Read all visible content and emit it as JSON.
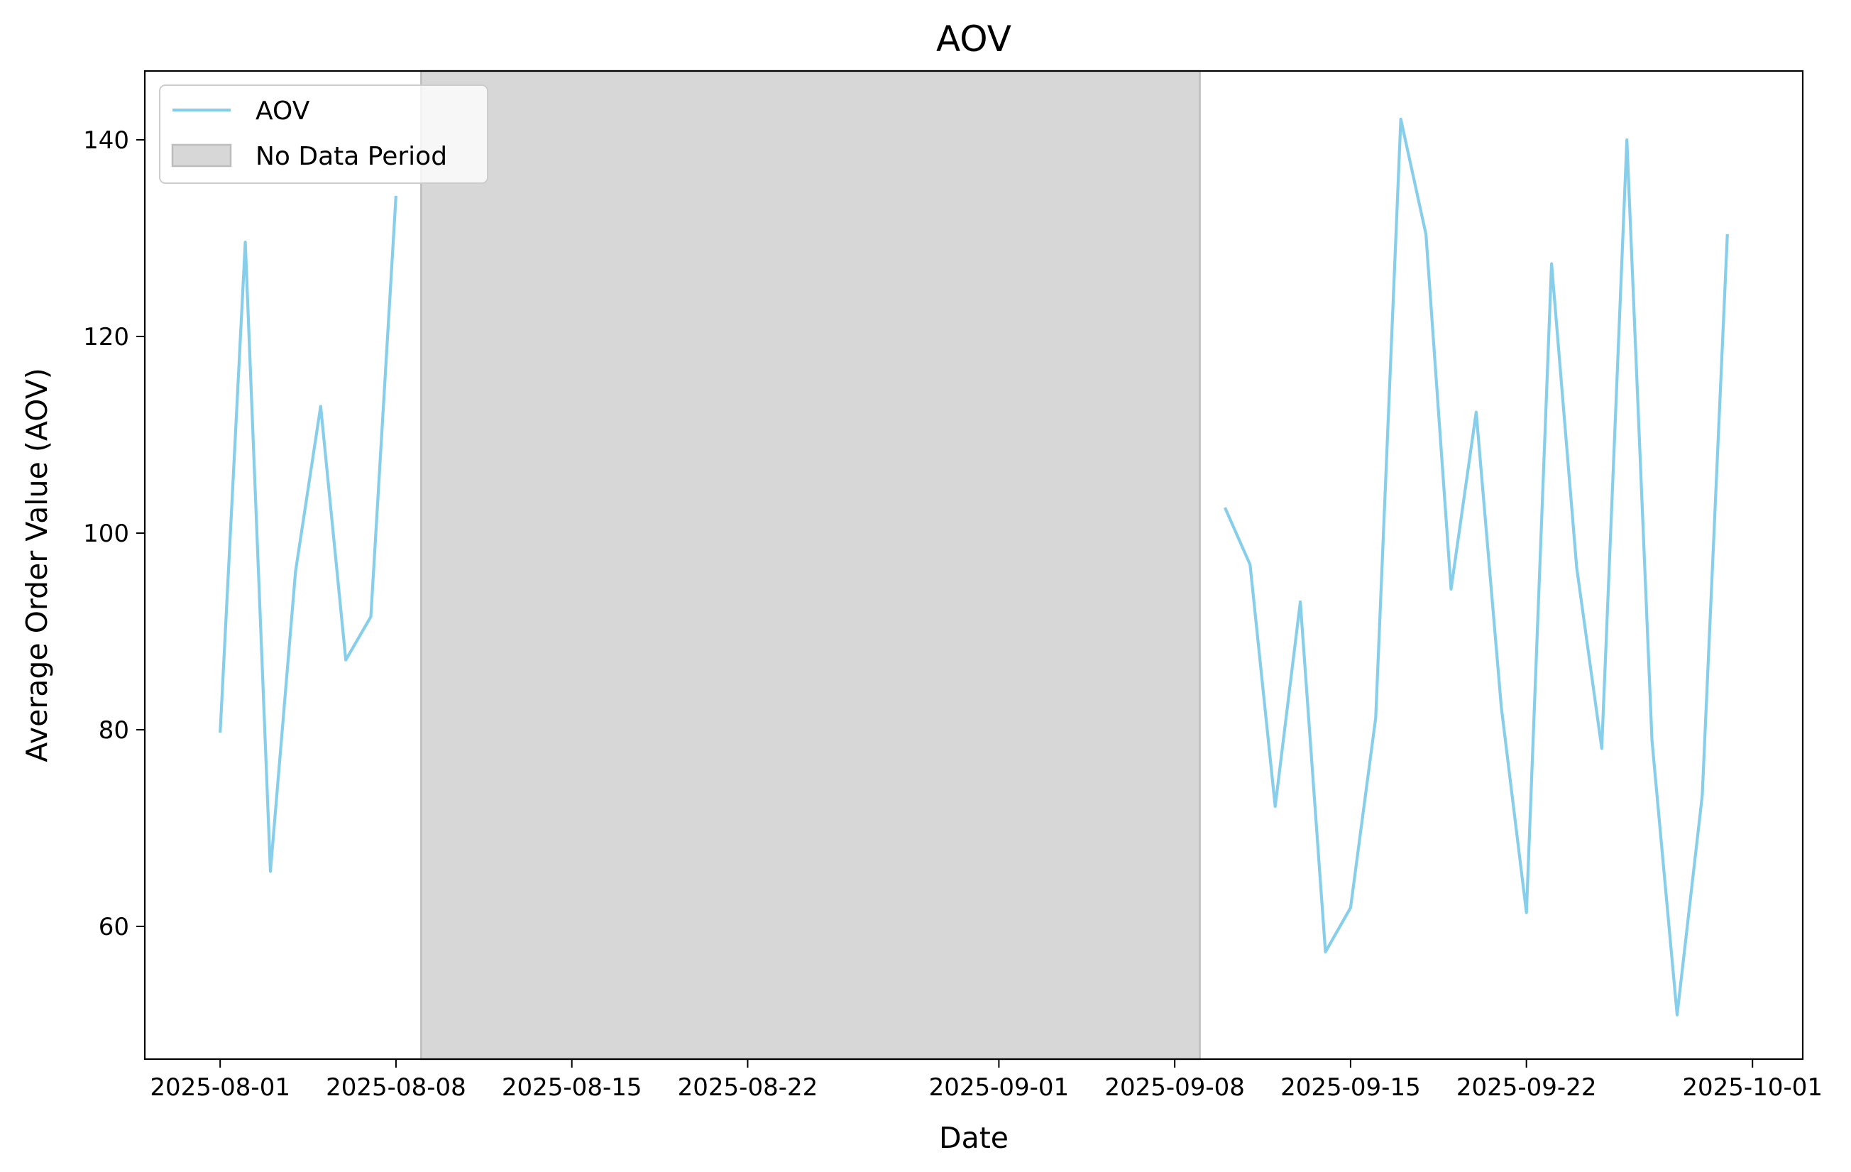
{
  "chart_data": {
    "type": "line",
    "title": "AOV",
    "xlabel": "Date",
    "ylabel": "Average Order Value (AOV)",
    "xlim": [
      "2025-07-29",
      "2025-10-03"
    ],
    "ylim": [
      46.5,
      147
    ],
    "grid": false,
    "legend_position": "top-left",
    "colors": {
      "line": "#87ceeb",
      "shade": "#d7d7d7",
      "shade_edge": "#bdbdbd"
    },
    "x_ticks": [
      "2025-08-01",
      "2025-08-08",
      "2025-08-15",
      "2025-08-22",
      "2025-09-01",
      "2025-09-08",
      "2025-09-15",
      "2025-09-22",
      "2025-10-01"
    ],
    "y_ticks": [
      60,
      80,
      100,
      120,
      140
    ],
    "legend": [
      {
        "label": "AOV",
        "kind": "line"
      },
      {
        "label": "No Data Period",
        "kind": "patch"
      }
    ],
    "shaded_regions": [
      {
        "label": "No Data Period",
        "start": "2025-08-09",
        "end": "2025-09-09"
      }
    ],
    "series": [
      {
        "name": "AOV",
        "segments": [
          {
            "x": [
              "2025-08-01",
              "2025-08-02",
              "2025-08-03",
              "2025-08-04",
              "2025-08-05",
              "2025-08-06",
              "2025-08-07",
              "2025-08-08"
            ],
            "y": [
              79.7,
              129.6,
              65.6,
              96.1,
              112.9,
              87.1,
              91.5,
              134.3
            ]
          },
          {
            "x": [
              "2025-09-10",
              "2025-09-11",
              "2025-09-12",
              "2025-09-13",
              "2025-09-14",
              "2025-09-15",
              "2025-09-16",
              "2025-09-17",
              "2025-09-18",
              "2025-09-19",
              "2025-09-20",
              "2025-09-21",
              "2025-09-22",
              "2025-09-23",
              "2025-09-24",
              "2025-09-25",
              "2025-09-26",
              "2025-09-27",
              "2025-09-28",
              "2025-09-29",
              "2025-09-30"
            ],
            "y": [
              102.6,
              96.8,
              72.2,
              93.0,
              57.4,
              61.9,
              81.2,
              142.1,
              130.4,
              94.3,
              112.3,
              82.3,
              61.4,
              127.4,
              96.5,
              78.1,
              140.0,
              78.9,
              51.0,
              73.3,
              130.4
            ]
          }
        ]
      }
    ]
  }
}
